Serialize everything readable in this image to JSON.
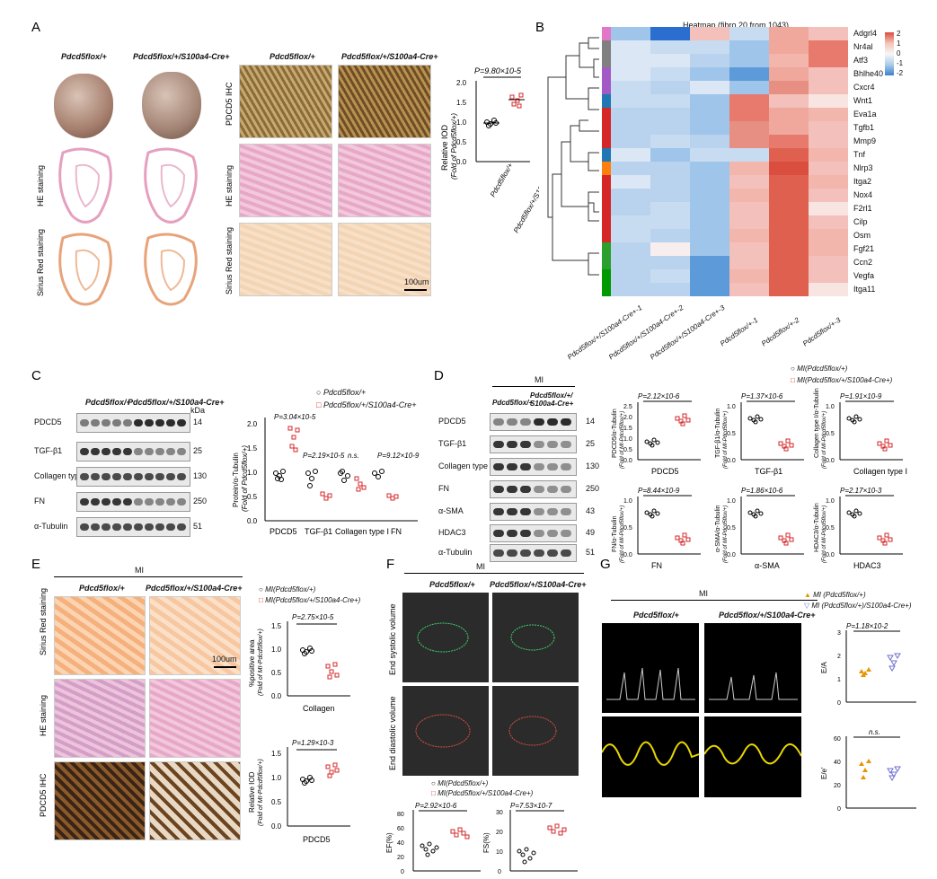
{
  "panels": {
    "A": {
      "letter": "A",
      "group1": "Pdcd5flox/+",
      "group2": "Pdcd5flox/+/S100a4-Cre+",
      "row_labels": [
        "HE staining",
        "Sirius Red staining"
      ],
      "ihc_rows": [
        "PDCD5 IHC",
        "HE staining",
        "Sirius Red staining"
      ],
      "scale": "100um",
      "pvalue": "P=9.80×10-5",
      "ylabel": "Relative IOD",
      "ylabel2": "(Fold of Pdcd5flox/+)",
      "xcat": [
        "Pdcd5flox/+",
        "Pdcd5flox/+/S100a4-Cre+"
      ],
      "yticks": [
        "0.0",
        "0.5",
        "1.0",
        "1.5",
        "2.0"
      ]
    },
    "B": {
      "letter": "B",
      "title": "Heatmap (fibro 20 from 1043)",
      "genes": [
        "Adgrl4",
        "Nr4al",
        "Atf3",
        "Bhlhe40",
        "Cxcr4",
        "Wnt1",
        "Eva1a",
        "Tgfb1",
        "Mmp9",
        "Tnf",
        "Nlrp3",
        "Itga2",
        "Nox4",
        "F2rl1",
        "Cilp",
        "Osm",
        "Fgf21",
        "Ccn2",
        "Vegfa",
        "Itga11"
      ],
      "samples": [
        "Pdcd5flox/+/S100a4-Cre+-1",
        "Pdcd5flox/+/S100a4-Cre+-2",
        "Pdcd5flox/+/S100a4-Cre+-3",
        "Pdcd5flox/+-1",
        "Pdcd5flox/+-2",
        "Pdcd5flox/+-3"
      ],
      "legend_ticks": [
        "2",
        "1",
        "0",
        "-1",
        "-2"
      ],
      "side_colors": [
        "#e277c8",
        "#808080",
        "#808080",
        "#a35ac7",
        "#a35ac7",
        "#1f77b4",
        "#d62728",
        "#d62728",
        "#d62728",
        "#1f77b4",
        "#ff7f0e",
        "#d62728",
        "#d62728",
        "#d62728",
        "#d62728",
        "#d62728",
        "#2ca02c",
        "#2ca02c",
        "#009900",
        "#009900"
      ]
    },
    "C": {
      "letter": "C",
      "group1": "Pdcd5flox/+",
      "group2": "Pdcd5flox/+/S100a4-Cre+",
      "kda_label": "kDa",
      "blots": [
        {
          "name": "PDCD5",
          "kda": "14"
        },
        {
          "name": "TGF-β1",
          "kda": "25"
        },
        {
          "name": "Collagen type I",
          "kda": "130"
        },
        {
          "name": "FN",
          "kda": "250"
        },
        {
          "name": "α-Tubulin",
          "kda": "51"
        }
      ],
      "legend": [
        "Pdcd5flox/+",
        "Pdcd5flox/+/S100a4-Cre+"
      ],
      "ylabel": "Protein/α-Tubulin",
      "ylabel2": "(Fold of Pdcd5flox/+)",
      "pvalues": [
        "P=3.04×10-5",
        "P=2.19×10-5",
        "n.s.",
        "P=9.12×10-9"
      ],
      "xcat": [
        "PDCD5",
        "TGF-β1",
        "Collagen type I",
        "FN"
      ],
      "yticks": [
        "0.0",
        "0.5",
        "1.0",
        "1.5",
        "2.0"
      ]
    },
    "D": {
      "letter": "D",
      "header": "MI",
      "group1": "Pdcd5flox/+",
      "group2": "Pdcd5flox/+/ S100a4-Cre+",
      "blots": [
        {
          "name": "PDCD5",
          "kda": "14"
        },
        {
          "name": "TGF-β1",
          "kda": "25"
        },
        {
          "name": "Collagen type I",
          "kda": "130"
        },
        {
          "name": "FN",
          "kda": "250"
        },
        {
          "name": "α-SMA",
          "kda": "43"
        },
        {
          "name": "HDAC3",
          "kda": "49"
        },
        {
          "name": "α-Tubulin",
          "kda": "51"
        }
      ],
      "legend": [
        "MI(Pdcd5flox/+)",
        "MI(Pdcd5flox/+/S100a4-Cre+)"
      ],
      "plots": [
        {
          "title": "PDCD5",
          "p": "P=2.12×10-6",
          "ylabel": "PDCD5/α-Tubulin",
          "yticks": [
            "0.0",
            "0.5",
            "1.0",
            "1.5",
            "2.0",
            "2.5"
          ]
        },
        {
          "title": "TGF-β1",
          "p": "P=1.37×10-6",
          "ylabel": "TGF-β1/α-Tubulin",
          "yticks": [
            "0.0",
            "0.5",
            "1.0"
          ]
        },
        {
          "title": "Collagen type I",
          "p": "P=1.91×10-9",
          "ylabel": "Collagen type I/α-Tubulin",
          "yticks": [
            "0.0",
            "0.5",
            "1.0"
          ]
        },
        {
          "title": "FN",
          "p": "P=8.44×10-9",
          "ylabel": "FN/α-Tubulin",
          "yticks": [
            "0.0",
            "0.5",
            "1.0"
          ]
        },
        {
          "title": "α-SMA",
          "p": "P=1.86×10-6",
          "ylabel": "α-SMA/α-Tubulin",
          "yticks": [
            "0.0",
            "0.5",
            "1.0"
          ]
        },
        {
          "title": "HDAC3",
          "p": "P=2.17×10-3",
          "ylabel": "HDAC3/α-Tubulin",
          "yticks": [
            "0.0",
            "0.5",
            "1.0"
          ]
        }
      ],
      "ylabel2": "(Fold of MI-Pdcd5flox/+)"
    },
    "E": {
      "letter": "E",
      "header": "MI",
      "group1": "Pdcd5flox/+",
      "group2": "Pdcd5flox/+/S100a4-Cre+",
      "rows": [
        "Sirius Red staining",
        "HE staining",
        "PDCD5 IHC"
      ],
      "scale": "100um",
      "legend": [
        "MI(Pdcd5flox/+)",
        "MI(Pdcd5flox/+/S100a4-Cre+)"
      ],
      "plot1": {
        "p": "P=2.75×10-5",
        "ylabel": "%positive area",
        "ylabel2": "(Fold of MI-Pdcd5flox/+)",
        "title": "Collagen",
        "yticks": [
          "0.0",
          "0.5",
          "1.0",
          "1.5"
        ]
      },
      "plot2": {
        "p": "P=1.29×10-3",
        "ylabel": "Relative IOD",
        "ylabel2": "(Fold of MI-Pdcd5flox/+)",
        "title": "PDCD5",
        "yticks": [
          "0.0",
          "0.5",
          "1.0",
          "1.5"
        ]
      }
    },
    "F": {
      "letter": "F",
      "header": "MI",
      "group1": "Pdcd5flox/+",
      "group2": "Pdcd5flox/+/S100a4-Cre+",
      "rows": [
        "End systolic volume",
        "End diastolic volume"
      ],
      "legend": [
        "MI(Pdcd5flox/+)",
        "MI(Pdcd5flox/+/S100a4-Cre+)"
      ],
      "ef": {
        "p": "P=2.92×10-6",
        "ylabel": "EF(%)",
        "yticks": [
          "0",
          "20",
          "40",
          "60",
          "80"
        ]
      },
      "fs": {
        "p": "P=7.53×10-7",
        "ylabel": "FS(%)",
        "yticks": [
          "0",
          "10",
          "20",
          "30"
        ]
      }
    },
    "G": {
      "letter": "G",
      "header": "MI",
      "group1": "Pdcd5flox/+",
      "group2": "Pdcd5flox/+/S100a4-Cre+",
      "legend": [
        "MI (Pdcd5flox/+)",
        "MI (Pdcd5flox/+)/S100a4-Cre+)"
      ],
      "ea": {
        "p": "P=1.18×10-2",
        "ylabel": "E/A",
        "yticks": [
          "0",
          "1",
          "2",
          "3"
        ]
      },
      "ee": {
        "p": "n.s.",
        "ylabel": "E/e'",
        "yticks": [
          "0",
          "20",
          "40",
          "60"
        ]
      }
    }
  }
}
